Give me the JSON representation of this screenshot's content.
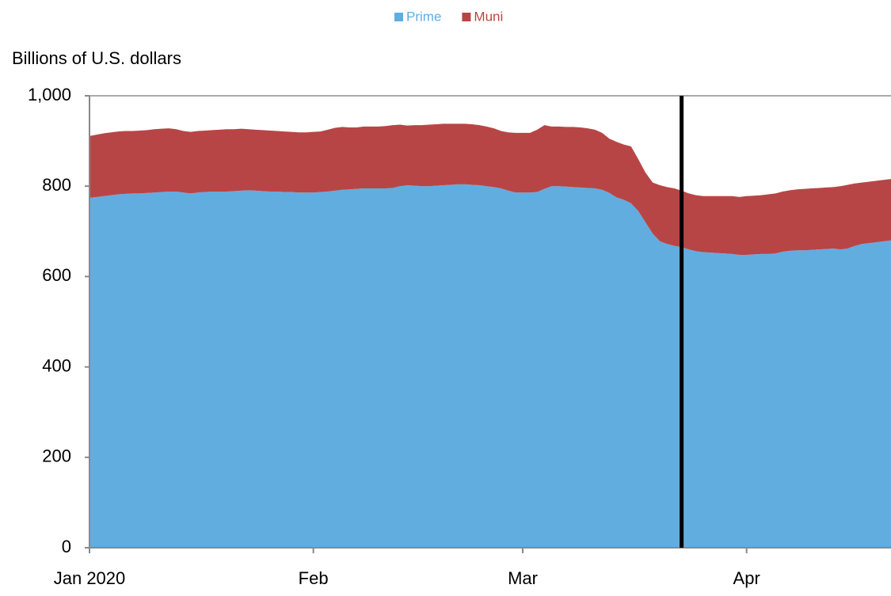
{
  "chart_data": {
    "type": "stacked_area",
    "legend": "top",
    "y_label": "Billions of U.S. dollars",
    "categories": [
      "Jan 2020",
      null,
      null,
      null,
      null,
      null,
      null,
      null,
      null,
      null,
      null,
      null,
      null,
      null,
      null,
      null,
      null,
      null,
      null,
      null,
      null,
      null,
      null,
      null,
      null,
      null,
      null,
      null,
      null,
      null,
      null,
      "Feb",
      null,
      null,
      null,
      null,
      null,
      null,
      null,
      null,
      null,
      null,
      null,
      null,
      null,
      null,
      null,
      null,
      null,
      null,
      null,
      null,
      null,
      null,
      null,
      null,
      null,
      null,
      null,
      null,
      "Mar",
      null,
      null,
      null,
      null,
      null,
      null,
      null,
      null,
      null,
      null,
      null,
      null,
      null,
      null,
      null,
      null,
      null,
      null,
      null,
      null,
      null,
      null,
      null,
      null,
      null,
      null,
      null,
      null,
      null,
      null,
      "Apr",
      null,
      null,
      null,
      null,
      null,
      null,
      null,
      null,
      null,
      null,
      null,
      null,
      null,
      null,
      null,
      null,
      null,
      null,
      null,
      null
    ],
    "series": [
      {
        "name": "Prime",
        "color": "#61ade0",
        "values": [
          774,
          776,
          778,
          780,
          782,
          783,
          784,
          784,
          785,
          786,
          787,
          788,
          788,
          786,
          784,
          786,
          787,
          788,
          788,
          788,
          789,
          790,
          791,
          790,
          789,
          788,
          788,
          787,
          787,
          786,
          786,
          786,
          787,
          788,
          790,
          792,
          793,
          794,
          795,
          795,
          795,
          795,
          796,
          800,
          802,
          801,
          800,
          800,
          801,
          802,
          803,
          804,
          804,
          803,
          802,
          800,
          798,
          795,
          790,
          786,
          786,
          786,
          787,
          794,
          800,
          800,
          799,
          798,
          797,
          796,
          795,
          792,
          785,
          775,
          770,
          762,
          745,
          720,
          695,
          678,
          672,
          668,
          665,
          660,
          656,
          654,
          653,
          652,
          651,
          650,
          648,
          648,
          649,
          650,
          650,
          651,
          655,
          657,
          658,
          658,
          659,
          660,
          661,
          662,
          660,
          662,
          668,
          672,
          674,
          676,
          678,
          680
        ]
      },
      {
        "name": "Muni",
        "color": "#b84545",
        "values": [
          137,
          138,
          139,
          139,
          139,
          139,
          138,
          139,
          139,
          140,
          140,
          140,
          138,
          136,
          136,
          136,
          136,
          136,
          137,
          138,
          137,
          137,
          135,
          135,
          135,
          135,
          134,
          134,
          133,
          133,
          133,
          134,
          134,
          137,
          139,
          139,
          137,
          136,
          137,
          137,
          137,
          138,
          139,
          136,
          132,
          134,
          135,
          136,
          136,
          136,
          135,
          134,
          134,
          134,
          133,
          132,
          130,
          127,
          129,
          132,
          132,
          132,
          138,
          141,
          132,
          132,
          132,
          133,
          133,
          132,
          130,
          126,
          120,
          123,
          122,
          126,
          115,
          110,
          113,
          124,
          126,
          127,
          125,
          124,
          124,
          124,
          125,
          126,
          127,
          128,
          128,
          130,
          130,
          130,
          132,
          133,
          133,
          134,
          135,
          136,
          136,
          136,
          136,
          136,
          140,
          141,
          138,
          136,
          136,
          136,
          136,
          136
        ]
      }
    ],
    "event_index": 82,
    "ylim": [
      0,
      1000
    ],
    "yticks": [
      0,
      200,
      400,
      600,
      800,
      {
        "value": 1000,
        "label": "1,000"
      }
    ],
    "grid": false
  }
}
